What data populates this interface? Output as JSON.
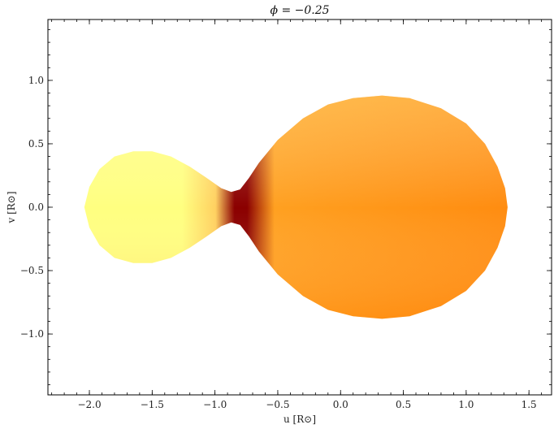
{
  "chart_data": {
    "type": "scatter",
    "title": "ϕ = −0.25",
    "xlabel": "u [R⊙]",
    "ylabel": "v [R⊙]",
    "xlim": [
      -2.33,
      1.68
    ],
    "ylim": [
      -1.48,
      1.48
    ],
    "x_ticks": [
      -2.0,
      -1.5,
      -1.0,
      -0.5,
      0.0,
      0.5,
      1.0,
      1.5
    ],
    "x_tick_labels": [
      "−2.0",
      "−1.5",
      "−1.0",
      "−0.5",
      "0.0",
      "0.5",
      "1.0",
      "1.5"
    ],
    "y_ticks": [
      1.0,
      0.5,
      0.0,
      -0.5,
      -1.0
    ],
    "y_tick_labels": [
      "1.0",
      "0.5",
      "0.0",
      "−0.5",
      "−1.0"
    ],
    "minor_tick_step": 0.1,
    "grid": false,
    "series": [
      {
        "shape": "contact binary surface",
        "colormap": "afmhot",
        "outline": [
          [
            -2.04,
            0.0
          ],
          [
            -2.0,
            0.16
          ],
          [
            -1.92,
            0.3
          ],
          [
            -1.8,
            0.4
          ],
          [
            -1.65,
            0.44
          ],
          [
            -1.5,
            0.44
          ],
          [
            -1.35,
            0.4
          ],
          [
            -1.2,
            0.32
          ],
          [
            -1.05,
            0.22
          ],
          [
            -0.95,
            0.15
          ],
          [
            -0.87,
            0.12
          ],
          [
            -0.8,
            0.14
          ],
          [
            -0.73,
            0.23
          ],
          [
            -0.65,
            0.35
          ],
          [
            -0.5,
            0.53
          ],
          [
            -0.3,
            0.7
          ],
          [
            -0.1,
            0.81
          ],
          [
            0.1,
            0.86
          ],
          [
            0.33,
            0.88
          ],
          [
            0.55,
            0.86
          ],
          [
            0.8,
            0.78
          ],
          [
            1.0,
            0.66
          ],
          [
            1.15,
            0.5
          ],
          [
            1.25,
            0.32
          ],
          [
            1.31,
            0.15
          ],
          [
            1.33,
            0.0
          ],
          [
            1.31,
            -0.15
          ],
          [
            1.25,
            -0.32
          ],
          [
            1.15,
            -0.5
          ],
          [
            1.0,
            -0.66
          ],
          [
            0.8,
            -0.78
          ],
          [
            0.55,
            -0.86
          ],
          [
            0.33,
            -0.88
          ],
          [
            0.1,
            -0.86
          ],
          [
            -0.1,
            -0.81
          ],
          [
            -0.3,
            -0.7
          ],
          [
            -0.5,
            -0.53
          ],
          [
            -0.65,
            -0.35
          ],
          [
            -0.73,
            -0.23
          ],
          [
            -0.8,
            -0.14
          ],
          [
            -0.87,
            -0.12
          ],
          [
            -0.95,
            -0.15
          ],
          [
            -1.05,
            -0.22
          ],
          [
            -1.2,
            -0.32
          ],
          [
            -1.35,
            -0.4
          ],
          [
            -1.5,
            -0.44
          ],
          [
            -1.65,
            -0.44
          ],
          [
            -1.8,
            -0.4
          ],
          [
            -1.92,
            -0.3
          ],
          [
            -2.0,
            -0.16
          ]
        ],
        "colors": {
          "small_star": "#ffff80",
          "neck": "#8b0000",
          "large_star_top": "#ffcc55",
          "large_star_bottom": "#ff8c10"
        }
      }
    ]
  }
}
